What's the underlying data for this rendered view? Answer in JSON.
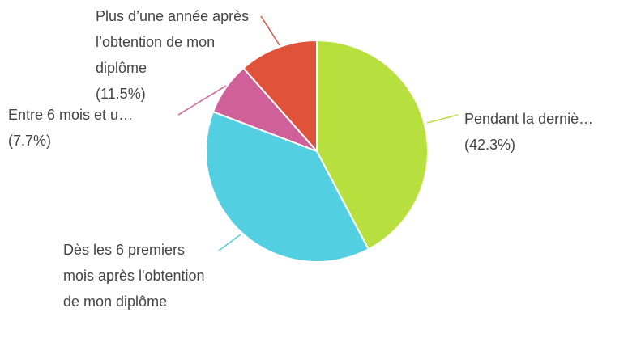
{
  "chart_data": {
    "type": "pie",
    "categories": [
      "Pendant la derniè…",
      "Dès les 6 premiers mois après l'obtention de mon diplôme",
      "Entre 6 mois et u…",
      "Plus d’une année après l’obtention de mon diplôme"
    ],
    "values": [
      42.3,
      38.5,
      7.7,
      11.5
    ],
    "value_labels": [
      "(42.3%)",
      null,
      "(7.7%)",
      "(11.5%)"
    ],
    "colors": [
      "#b7e03e",
      "#52cfe0",
      "#d0609a",
      "#e0533a"
    ]
  }
}
